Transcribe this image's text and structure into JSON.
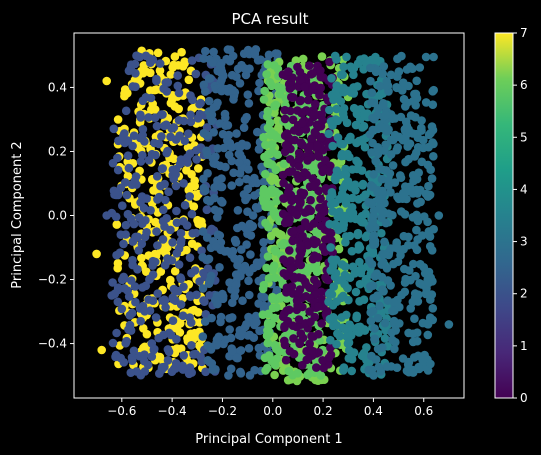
{
  "chart_data": {
    "type": "scatter",
    "title": "PCA result",
    "xlabel": "Principal Component 1",
    "ylabel": "Principal Component 2",
    "xlim": [
      -0.79,
      0.76
    ],
    "ylim": [
      -0.57,
      0.57
    ],
    "xticks": [
      -0.6,
      -0.4,
      -0.2,
      0.0,
      0.2,
      0.4,
      0.6
    ],
    "xtick_labels": [
      "−0.6",
      "−0.4",
      "−0.2",
      "0.0",
      "0.2",
      "0.4",
      "0.6"
    ],
    "yticks": [
      -0.4,
      -0.2,
      0.0,
      0.2,
      0.4
    ],
    "ytick_labels": [
      "−0.4",
      "−0.2",
      "0.0",
      "0.2",
      "0.4"
    ],
    "grid": false,
    "colormap": "viridis",
    "colorbar": {
      "range": [
        0,
        7
      ],
      "ticks": [
        0,
        1,
        2,
        3,
        4,
        5,
        6,
        7
      ],
      "tick_labels": [
        "0",
        "1",
        "2",
        "3",
        "4",
        "5",
        "6",
        "7"
      ]
    },
    "clusters": [
      {
        "label_value": 7,
        "x_range": [
          -0.62,
          -0.28
        ],
        "y_range": [
          -0.48,
          0.52
        ],
        "color": "#fde725",
        "outliers": [
          [
            -0.7,
            -0.12
          ],
          [
            -0.68,
            -0.42
          ],
          [
            -0.66,
            0.42
          ]
        ]
      },
      {
        "label_value": 1,
        "x_range": [
          -0.64,
          -0.22
        ],
        "y_range": [
          -0.5,
          0.5
        ],
        "color": "#3b528b",
        "outliers": [
          [
            -0.66,
            0.0
          ],
          [
            -0.64,
            -0.25
          ]
        ]
      },
      {
        "label_value": 2,
        "x_range": [
          -0.28,
          0.02
        ],
        "y_range": [
          -0.5,
          0.52
        ],
        "color": "#33638d"
      },
      {
        "label_value": 6,
        "x_range": [
          -0.02,
          0.3
        ],
        "y_range": [
          -0.52,
          0.5
        ],
        "color": "#7ad151"
      },
      {
        "label_value": 5,
        "x_range": [
          -0.04,
          0.2
        ],
        "y_range": [
          -0.5,
          0.48
        ],
        "color": "#5ec962"
      },
      {
        "label_value": 0,
        "x_range": [
          0.04,
          0.24
        ],
        "y_range": [
          -0.48,
          0.48
        ],
        "color": "#440154"
      },
      {
        "label_value": 4,
        "x_range": [
          0.22,
          0.46
        ],
        "y_range": [
          -0.5,
          0.5
        ],
        "color": "#26828e"
      },
      {
        "label_value": 3,
        "x_range": [
          0.38,
          0.64
        ],
        "y_range": [
          -0.5,
          0.5
        ],
        "color": "#2c728e",
        "outliers": [
          [
            0.7,
            -0.34
          ],
          [
            0.66,
            0.0
          ]
        ]
      }
    ]
  }
}
